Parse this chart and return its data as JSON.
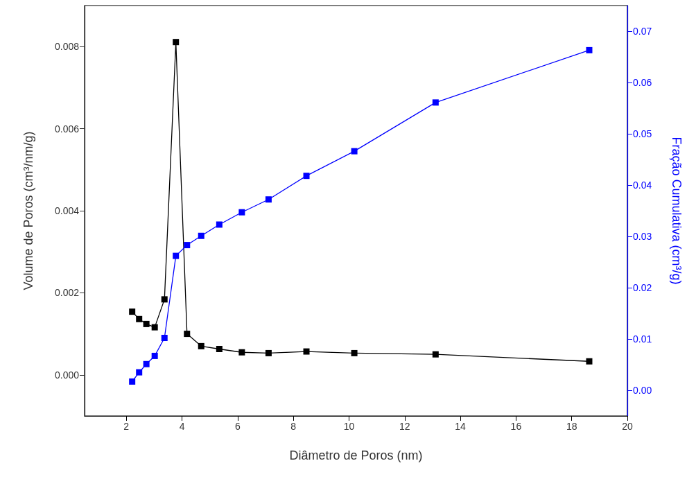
{
  "chart_data": {
    "type": "line",
    "xlabel": "Diâmetro de Poros (nm)",
    "ylabel": "Volume de Poros (cm³/nm/g)",
    "y2label": "Fração Cumulativa (cm³/g)",
    "xlim": [
      0.5,
      20
    ],
    "xticks": [
      2,
      4,
      6,
      8,
      10,
      12,
      14,
      16,
      18,
      20
    ],
    "ylim": [
      -0.001,
      0.009
    ],
    "yticks": [
      {
        "value": 0,
        "label": "0.000"
      },
      0.002,
      0.004,
      0.006,
      0.008
    ],
    "y2lim": [
      -0.005,
      0.075
    ],
    "y2ticks": [
      {
        "value": 0,
        "label": "0.00"
      },
      0.01,
      0.02,
      0.03,
      0.04,
      0.05,
      0.06,
      0.07
    ],
    "grid": false,
    "marker": "square",
    "line_style": "solid",
    "x": [
      2.21,
      2.46,
      2.72,
      3.02,
      3.37,
      3.78,
      4.18,
      4.69,
      5.34,
      6.15,
      7.11,
      8.47,
      10.19,
      13.11,
      18.63
    ],
    "series": [
      {
        "color": "#000000",
        "values": [
          0.00154,
          0.00136,
          0.00124,
          0.00116,
          0.00184,
          0.00811,
          0.001,
          0.0007,
          0.00063,
          0.00055,
          0.00053,
          0.00057,
          0.00053,
          0.0005,
          0.00033
        ]
      },
      {
        "color": "#0000ff",
        "axis": "y2",
        "values": [
          0.0017,
          0.0035,
          0.0051,
          0.0067,
          0.0102,
          0.0262,
          0.0283,
          0.0301,
          0.0323,
          0.0347,
          0.0372,
          0.0418,
          0.0466,
          0.0561,
          0.0663
        ]
      }
    ]
  }
}
